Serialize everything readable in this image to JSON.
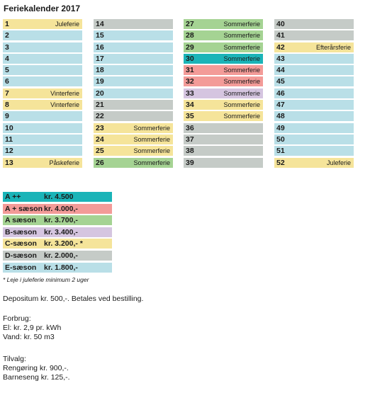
{
  "title": "Feriekalender 2017",
  "colors": {
    "A++": "#1ab4b8",
    "A+": "#f39b98",
    "A": "#a5d393",
    "B": "#d5c5e0",
    "C": "#f5e49a",
    "D": "#c5cbc7",
    "E": "#b9dfe7"
  },
  "columns": [
    [
      {
        "n": "1",
        "label": "Juleferie",
        "season": "C"
      },
      {
        "n": "2",
        "label": "",
        "season": "E"
      },
      {
        "n": "3",
        "label": "",
        "season": "E"
      },
      {
        "n": "4",
        "label": "",
        "season": "E"
      },
      {
        "n": "5",
        "label": "",
        "season": "E"
      },
      {
        "n": "6",
        "label": "",
        "season": "E"
      },
      {
        "n": "7",
        "label": "Vinterferie",
        "season": "C"
      },
      {
        "n": "8",
        "label": "Vinterferie",
        "season": "C"
      },
      {
        "n": "9",
        "label": "",
        "season": "E"
      },
      {
        "n": "10",
        "label": "",
        "season": "E"
      },
      {
        "n": "11",
        "label": "",
        "season": "E"
      },
      {
        "n": "12",
        "label": "",
        "season": "E"
      },
      {
        "n": "13",
        "label": "Påskeferie",
        "season": "C"
      }
    ],
    [
      {
        "n": "14",
        "label": "",
        "season": "D"
      },
      {
        "n": "15",
        "label": "",
        "season": "E"
      },
      {
        "n": "16",
        "label": "",
        "season": "E"
      },
      {
        "n": "17",
        "label": "",
        "season": "E"
      },
      {
        "n": "18",
        "label": "",
        "season": "E"
      },
      {
        "n": "19",
        "label": "",
        "season": "E"
      },
      {
        "n": "20",
        "label": "",
        "season": "E"
      },
      {
        "n": "21",
        "label": "",
        "season": "D"
      },
      {
        "n": "22",
        "label": "",
        "season": "D"
      },
      {
        "n": "23",
        "label": "Sommerferie",
        "season": "C"
      },
      {
        "n": "24",
        "label": "Sommerferie",
        "season": "C"
      },
      {
        "n": "25",
        "label": "Sommerferie",
        "season": "C"
      },
      {
        "n": "26",
        "label": "Sommerferie",
        "season": "A"
      }
    ],
    [
      {
        "n": "27",
        "label": "Sommerferie",
        "season": "A"
      },
      {
        "n": "28",
        "label": "Sommerferie",
        "season": "A"
      },
      {
        "n": "29",
        "label": "Sommerferie",
        "season": "A"
      },
      {
        "n": "30",
        "label": "Sommerferie",
        "season": "A++"
      },
      {
        "n": "31",
        "label": "Sommerferie",
        "season": "A+"
      },
      {
        "n": "32",
        "label": "Sommerferie",
        "season": "A+"
      },
      {
        "n": "33",
        "label": "Sommerferie",
        "season": "B"
      },
      {
        "n": "34",
        "label": "Sommerferie",
        "season": "C"
      },
      {
        "n": "35",
        "label": "Sommerferie",
        "season": "C"
      },
      {
        "n": "36",
        "label": "",
        "season": "D"
      },
      {
        "n": "37",
        "label": "",
        "season": "D"
      },
      {
        "n": "38",
        "label": "",
        "season": "D"
      },
      {
        "n": "39",
        "label": "",
        "season": "D"
      }
    ],
    [
      {
        "n": "40",
        "label": "",
        "season": "D"
      },
      {
        "n": "41",
        "label": "",
        "season": "D"
      },
      {
        "n": "42",
        "label": "Efterårsferie",
        "season": "C"
      },
      {
        "n": "43",
        "label": "",
        "season": "E"
      },
      {
        "n": "44",
        "label": "",
        "season": "E"
      },
      {
        "n": "45",
        "label": "",
        "season": "E"
      },
      {
        "n": "46",
        "label": "",
        "season": "E"
      },
      {
        "n": "47",
        "label": "",
        "season": "E"
      },
      {
        "n": "48",
        "label": "",
        "season": "E"
      },
      {
        "n": "49",
        "label": "",
        "season": "E"
      },
      {
        "n": "50",
        "label": "",
        "season": "E"
      },
      {
        "n": "51",
        "label": "",
        "season": "E"
      },
      {
        "n": "52",
        "label": "Juleferie",
        "season": "C"
      }
    ]
  ],
  "prices": [
    {
      "name": "A ++",
      "value": "kr. 4.500",
      "season": "A++"
    },
    {
      "name": "A + sæson",
      "value": "kr. 4.000,-",
      "season": "A+"
    },
    {
      "name": "A sæson",
      "value": "kr. 3.700,-",
      "season": "A"
    },
    {
      "name": "B-sæson",
      "value": "kr. 3.400,-",
      "season": "B"
    },
    {
      "name": "C-sæson",
      "value": "kr. 3.200,- *",
      "season": "C"
    },
    {
      "name": "D-sæson",
      "value": "kr. 2.000,-",
      "season": "D"
    },
    {
      "name": "E-sæson",
      "value": "kr. 1.800,-",
      "season": "E"
    }
  ],
  "note": "* Leje i juleferie minimum 2 uger",
  "deposit": "Depositum kr. 500,-. Betales ved bestilling.",
  "forbrug": {
    "heading": "Forbrug:",
    "lines": [
      "El: kr. 2,9 pr. kWh",
      "Vand: kr. 50 m3"
    ]
  },
  "tilvalg": {
    "heading": "Tilvalg:",
    "lines": [
      "Rengøring kr. 900,-.",
      "Barneseng kr. 125,-."
    ]
  }
}
